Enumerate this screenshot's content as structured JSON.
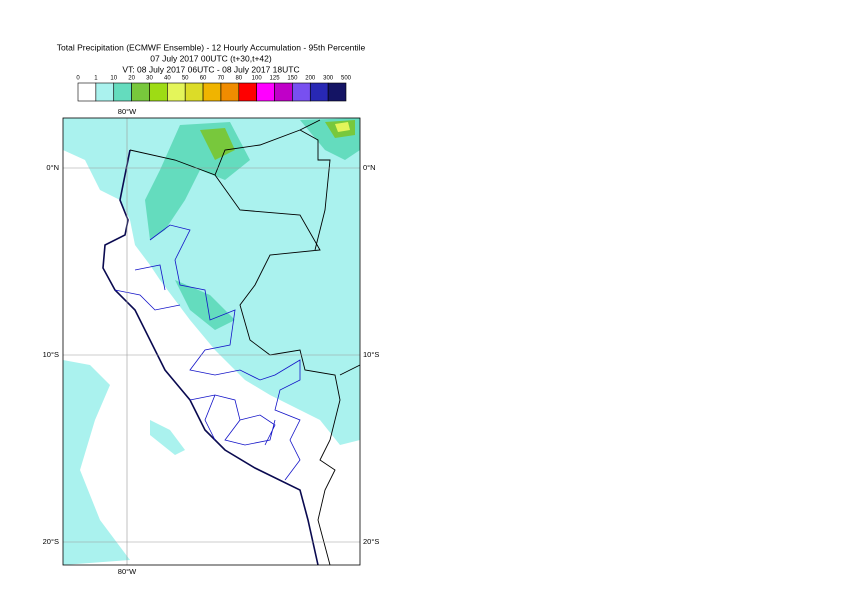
{
  "header": {
    "title": "Total Precipitation (ECMWF Ensemble) - 12 Hourly Accumulation - 95th Percentile",
    "base_time": "07 July 2017 00UTC (t+30,t+42)",
    "valid_time": "VT: 08 July 2017 06UTC - 08 July 2017 18UTC"
  },
  "legend": {
    "labels": [
      "0",
      "1",
      "10",
      "20",
      "30",
      "40",
      "50",
      "60",
      "70",
      "80",
      "100",
      "125",
      "150",
      "200",
      "300",
      "500"
    ],
    "colors": [
      "#ffffff",
      "#aaf2ee",
      "#64dcbe",
      "#78c83c",
      "#9edc14",
      "#e4f55a",
      "#dcdc28",
      "#f0b400",
      "#f08c00",
      "#ff0000",
      "#ff00ff",
      "#c000c8",
      "#7850f0",
      "#2828b4",
      "#141464"
    ]
  },
  "map": {
    "top_labels": [
      "80°W"
    ],
    "bottom_labels": [
      "80°W"
    ],
    "left_labels": [
      "0°N",
      "10°S",
      "20°S"
    ],
    "right_labels": [
      "0°N",
      "10°S",
      "20°S"
    ]
  }
}
